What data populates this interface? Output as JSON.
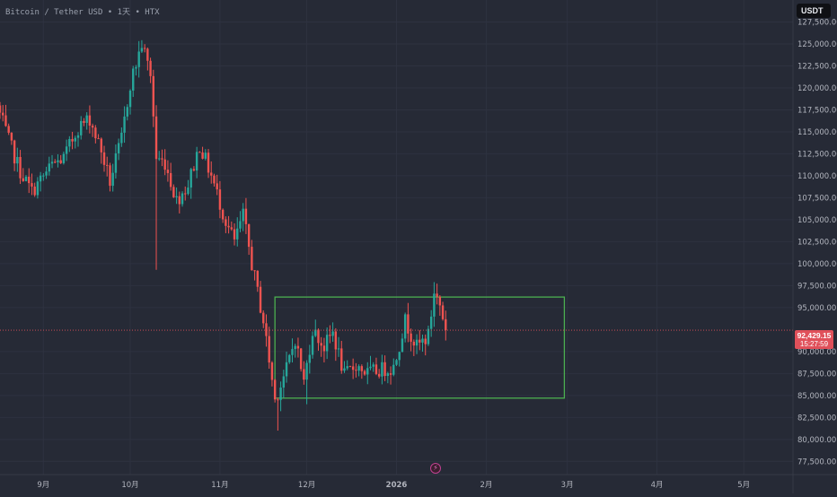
{
  "header": {
    "symbol_title": "Bitcoin / Tether USD • 1天 • HTX"
  },
  "currency_badge": "USDT",
  "current_price": {
    "price_label": "92,429.15",
    "countdown_label": "15:27:59",
    "value": 92429.15,
    "color": "#e0505a"
  },
  "colors": {
    "up": "#26a69a",
    "down": "#ef5350",
    "box": "#4caf50",
    "background": "#262a36",
    "grid": "#2e3240",
    "axis_text": "#b2b5be"
  },
  "icons": {
    "bottom": "lightning-bolt-icon",
    "bolt_glyph": "⚡"
  },
  "chart_data": {
    "type": "candlestick",
    "title": "Bitcoin / Tether USD • 1天 • HTX",
    "xlabel": "",
    "ylabel": "",
    "ylim": [
      76000,
      130000
    ],
    "y_ticks": [
      {
        "value": 77500,
        "label": "77,500.00"
      },
      {
        "value": 80000,
        "label": "80,000.00"
      },
      {
        "value": 82500,
        "label": "82,500.00"
      },
      {
        "value": 85000,
        "label": "85,000.00"
      },
      {
        "value": 87500,
        "label": "87,500.00"
      },
      {
        "value": 90000,
        "label": "90,000.00"
      },
      {
        "value": 95000,
        "label": "95,000.00"
      },
      {
        "value": 97500,
        "label": "97,500.00"
      },
      {
        "value": 100000,
        "label": "100,000.00"
      },
      {
        "value": 102500,
        "label": "102,500.00"
      },
      {
        "value": 105000,
        "label": "105,000.00"
      },
      {
        "value": 107500,
        "label": "107,500.00"
      },
      {
        "value": 110000,
        "label": "110,000.00"
      },
      {
        "value": 112500,
        "label": "112,500.00"
      },
      {
        "value": 115000,
        "label": "115,000.00"
      },
      {
        "value": 117500,
        "label": "117,500.00"
      },
      {
        "value": 120000,
        "label": "120,000.00"
      },
      {
        "value": 122500,
        "label": "122,500.00"
      },
      {
        "value": 125000,
        "label": "125,000.00"
      },
      {
        "value": 127500,
        "label": "127,500.00"
      }
    ],
    "x_range": [
      "2025-08-17",
      "2026-05-18"
    ],
    "x_ticks": [
      {
        "date": "2025-09-01",
        "label": "9月"
      },
      {
        "date": "2025-10-01",
        "label": "10月"
      },
      {
        "date": "2025-11-01",
        "label": "11月"
      },
      {
        "date": "2025-12-01",
        "label": "12月"
      },
      {
        "date": "2026-01-01",
        "label": "2026"
      },
      {
        "date": "2026-02-01",
        "label": "2月"
      },
      {
        "date": "2026-03-01",
        "label": "3月"
      },
      {
        "date": "2026-04-01",
        "label": "4月"
      },
      {
        "date": "2026-05-01",
        "label": "5月"
      }
    ],
    "grid": true,
    "current_price_line": 92429.15,
    "box": {
      "x_start": "2025-11-20",
      "x_end": "2026-02-28",
      "y_low": 84700,
      "y_high": 96200
    },
    "segments": [
      {
        "d": "2025-08-17",
        "p": 118000
      },
      {
        "d": "2025-08-21",
        "p": 114000
      },
      {
        "d": "2025-08-25",
        "p": 110500
      },
      {
        "d": "2025-08-29",
        "p": 108200
      },
      {
        "d": "2025-09-01",
        "p": 109500
      },
      {
        "d": "2025-09-05",
        "p": 111200
      },
      {
        "d": "2025-09-09",
        "p": 112000
      },
      {
        "d": "2025-09-14",
        "p": 115500
      },
      {
        "d": "2025-09-18",
        "p": 116500
      },
      {
        "d": "2025-09-22",
        "p": 112800
      },
      {
        "d": "2025-09-25",
        "p": 109300
      },
      {
        "d": "2025-09-29",
        "p": 114200
      },
      {
        "d": "2025-10-02",
        "p": 120500
      },
      {
        "d": "2025-10-06",
        "p": 125000
      },
      {
        "d": "2025-10-09",
        "p": 121600
      },
      {
        "d": "2025-10-11",
        "p": 112000
      },
      {
        "d": "2025-10-14",
        "p": 111500
      },
      {
        "d": "2025-10-18",
        "p": 107200
      },
      {
        "d": "2025-10-22",
        "p": 109000
      },
      {
        "d": "2025-10-26",
        "p": 113500
      },
      {
        "d": "2025-10-30",
        "p": 110000
      },
      {
        "d": "2025-11-04",
        "p": 104800
      },
      {
        "d": "2025-11-07",
        "p": 102500
      },
      {
        "d": "2025-11-10",
        "p": 105500
      },
      {
        "d": "2025-11-13",
        "p": 100000
      },
      {
        "d": "2025-11-17",
        "p": 93500
      },
      {
        "d": "2025-11-21",
        "p": 84500
      },
      {
        "d": "2025-11-25",
        "p": 88000
      },
      {
        "d": "2025-11-28",
        "p": 91500
      },
      {
        "d": "2025-12-01",
        "p": 86500
      },
      {
        "d": "2025-12-04",
        "p": 92500
      },
      {
        "d": "2025-12-08",
        "p": 90500
      },
      {
        "d": "2025-12-11",
        "p": 92200
      },
      {
        "d": "2025-12-15",
        "p": 87200
      },
      {
        "d": "2025-12-19",
        "p": 88500
      },
      {
        "d": "2025-12-23",
        "p": 87500
      },
      {
        "d": "2025-12-27",
        "p": 87900
      },
      {
        "d": "2026-01-01",
        "p": 88200
      },
      {
        "d": "2026-01-05",
        "p": 93500
      },
      {
        "d": "2026-01-09",
        "p": 90500
      },
      {
        "d": "2026-01-13",
        "p": 91800
      },
      {
        "d": "2026-01-15",
        "p": 96800
      },
      {
        "d": "2026-01-17",
        "p": 95300
      },
      {
        "d": "2026-01-19",
        "p": 92400
      }
    ],
    "spikes": [
      {
        "d": "2025-10-10",
        "low": 99300
      },
      {
        "d": "2025-11-21",
        "low": 81000
      },
      {
        "d": "2025-12-01",
        "low": 84000
      },
      {
        "d": "2026-01-14",
        "high": 97900
      }
    ]
  }
}
